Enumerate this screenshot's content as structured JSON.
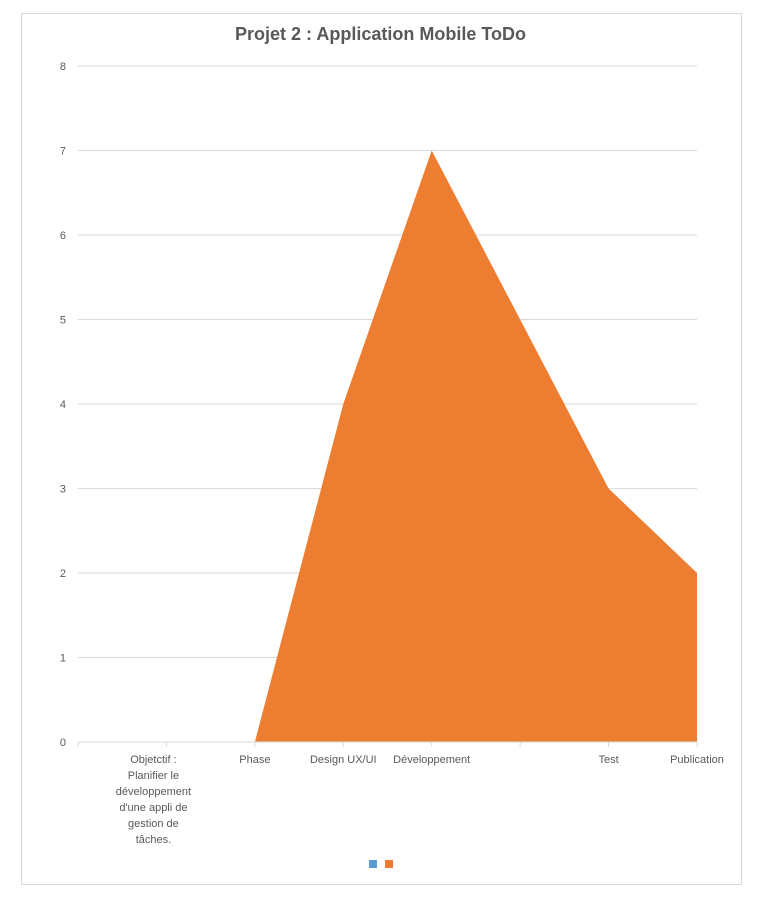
{
  "chart_data": {
    "type": "area",
    "title": "Projet 2 : Application Mobile ToDo",
    "categories": [
      "Objetctif :\nPlanifier le\ndéveloppement\nd'une appli de\ngestion de\ntâches.",
      "Phase",
      "Design UX/UI",
      "Développement",
      "",
      "Test",
      "Publication"
    ],
    "series": [
      {
        "values": [
          null,
          null,
          null,
          null,
          null,
          null,
          null
        ],
        "color": "#5B9BD5"
      },
      {
        "values": [
          0,
          0,
          4,
          7,
          5,
          3,
          2
        ],
        "color": "#ED7D31"
      }
    ],
    "ylim": [
      0,
      8
    ],
    "yticks": [
      0,
      1,
      2,
      3,
      4,
      5,
      6,
      7,
      8
    ],
    "grid": true,
    "legend": "bottom"
  }
}
